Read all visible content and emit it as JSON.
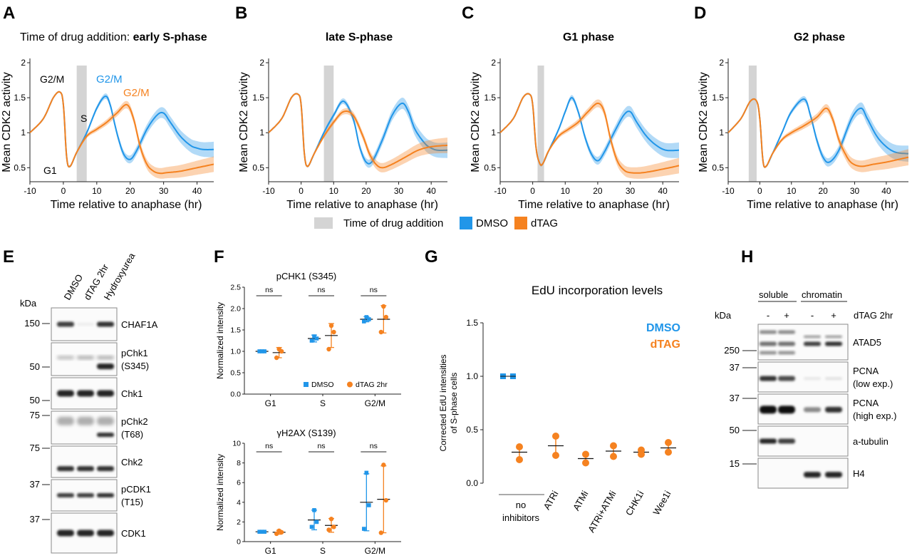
{
  "panel_letters": [
    "A",
    "B",
    "C",
    "D",
    "E",
    "F",
    "G",
    "H"
  ],
  "colors": {
    "dmso": "#2196e9",
    "dtag": "#f58220",
    "gray": "#d4d4d4",
    "axis": "#222222"
  },
  "panelA": {
    "title_prefix": "Time of drug addition:",
    "title_bold": "early S-phase",
    "annotations": {
      "g2m_left": "G2/M",
      "s": "S",
      "g1": "G1",
      "g2m_dmso": "G2/M",
      "g2m_dtag": "G2/M"
    }
  },
  "panelB": {
    "title": "late S-phase"
  },
  "panelC": {
    "title": "G1 phase"
  },
  "panelD": {
    "title": "G2 phase"
  },
  "cdk_axes": {
    "xlabel": "Time relative to anaphase (hr)",
    "ylabel": "Mean CDK2 activity"
  },
  "legend": {
    "drug": "Time of drug addition",
    "dmso": "DMSO",
    "dtag": "dTAG"
  },
  "chart_data": [
    {
      "panel": "A",
      "type": "line",
      "title": "Time of drug addition: early S-phase",
      "xlabel": "Time relative to anaphase (hr)",
      "ylabel": "Mean CDK2 activity",
      "xlim": [
        -10,
        45
      ],
      "ylim": [
        0.3,
        2
      ],
      "xticks": [
        -10,
        0,
        10,
        20,
        30,
        40
      ],
      "yticks": [
        0.5,
        1,
        1.5,
        2
      ],
      "drug_window": [
        4,
        7
      ],
      "series": [
        {
          "name": "DMSO",
          "x": [
            -10,
            -6,
            -3,
            -1,
            0,
            1,
            2,
            4,
            7,
            10,
            12.5,
            14,
            16,
            18,
            20,
            22,
            25,
            28,
            30,
            32,
            35,
            38,
            40,
            42,
            45
          ],
          "y": [
            1.0,
            1.2,
            1.5,
            1.58,
            1.4,
            0.65,
            0.52,
            0.72,
            1.0,
            1.35,
            1.52,
            1.4,
            1.0,
            0.7,
            0.62,
            0.75,
            1.05,
            1.25,
            1.28,
            1.15,
            0.95,
            0.82,
            0.78,
            0.76,
            0.76
          ]
        },
        {
          "name": "dTAG",
          "x": [
            -10,
            -6,
            -3,
            -1,
            0,
            1,
            2,
            4,
            7,
            10,
            13,
            16,
            19,
            21,
            23,
            25,
            27,
            29,
            31,
            35,
            40,
            45
          ],
          "y": [
            1.0,
            1.2,
            1.5,
            1.58,
            1.4,
            0.65,
            0.52,
            0.72,
            0.95,
            1.05,
            1.15,
            1.28,
            1.4,
            1.2,
            0.8,
            0.55,
            0.45,
            0.42,
            0.43,
            0.45,
            0.5,
            0.55
          ]
        }
      ]
    },
    {
      "panel": "B",
      "type": "line",
      "title": "late S-phase",
      "xlabel": "Time relative to anaphase (hr)",
      "ylabel": "Mean CDK2 activity",
      "xlim": [
        -10,
        45
      ],
      "ylim": [
        0.3,
        2
      ],
      "xticks": [
        -10,
        0,
        10,
        20,
        30,
        40
      ],
      "yticks": [
        0.5,
        1,
        1.5,
        2
      ],
      "drug_window": [
        7,
        10
      ],
      "series": [
        {
          "name": "DMSO",
          "x": [
            -10,
            -6,
            -3,
            -1,
            0,
            1,
            2,
            4,
            7,
            10,
            13,
            16,
            18,
            20,
            22,
            25,
            28,
            31,
            33,
            35,
            38,
            40,
            42,
            45
          ],
          "y": [
            1.0,
            1.2,
            1.5,
            1.55,
            1.4,
            0.7,
            0.52,
            0.7,
            1.0,
            1.25,
            1.45,
            1.2,
            0.8,
            0.58,
            0.6,
            0.9,
            1.25,
            1.42,
            1.3,
            1.05,
            0.85,
            0.78,
            0.75,
            0.75
          ]
        },
        {
          "name": "dTAG",
          "x": [
            -10,
            -6,
            -3,
            -1,
            0,
            1,
            2,
            4,
            7,
            10,
            13,
            16,
            19,
            21,
            23,
            25,
            28,
            32,
            36,
            40,
            45
          ],
          "y": [
            1.0,
            1.2,
            1.5,
            1.55,
            1.4,
            0.7,
            0.52,
            0.7,
            0.95,
            1.15,
            1.3,
            1.25,
            0.95,
            0.7,
            0.55,
            0.5,
            0.55,
            0.65,
            0.75,
            0.8,
            0.82
          ]
        }
      ]
    },
    {
      "panel": "C",
      "type": "line",
      "title": "G1 phase",
      "xlabel": "Time relative to anaphase (hr)",
      "ylabel": "Mean CDK2 activity",
      "xlim": [
        -10,
        45
      ],
      "ylim": [
        0.3,
        2
      ],
      "xticks": [
        -10,
        0,
        10,
        20,
        30,
        40
      ],
      "yticks": [
        0.5,
        1,
        1.5,
        2
      ],
      "drug_window": [
        1.5,
        3.5
      ],
      "series": [
        {
          "name": "DMSO",
          "x": [
            -10,
            -6,
            -3,
            -1,
            0,
            1,
            2,
            3,
            5,
            8,
            10,
            12,
            14,
            16,
            18,
            20,
            22,
            25,
            28,
            30,
            32,
            35,
            38,
            41,
            45
          ],
          "y": [
            1.0,
            1.2,
            1.5,
            1.55,
            1.4,
            0.8,
            0.58,
            0.55,
            0.75,
            1.05,
            1.3,
            1.5,
            1.3,
            0.95,
            0.7,
            0.6,
            0.72,
            1.0,
            1.25,
            1.3,
            1.15,
            0.95,
            0.82,
            0.75,
            0.75
          ]
        },
        {
          "name": "dTAG",
          "x": [
            -10,
            -6,
            -3,
            -1,
            0,
            1,
            2,
            3,
            5,
            8,
            11,
            14,
            17,
            20,
            22,
            24,
            26,
            28,
            30,
            34,
            40,
            45
          ],
          "y": [
            1.0,
            1.2,
            1.5,
            1.55,
            1.4,
            0.8,
            0.58,
            0.55,
            0.75,
            0.95,
            1.05,
            1.15,
            1.3,
            1.42,
            1.3,
            0.9,
            0.6,
            0.47,
            0.43,
            0.43,
            0.48,
            0.53
          ]
        }
      ]
    },
    {
      "panel": "D",
      "type": "line",
      "title": "G2 phase",
      "xlabel": "Time relative to anaphase (hr)",
      "ylabel": "Mean CDK2 activity",
      "xlim": [
        -10,
        47
      ],
      "ylim": [
        0.3,
        2
      ],
      "xticks": [
        -10,
        0,
        10,
        20,
        30,
        40
      ],
      "yticks": [
        0.5,
        1,
        1.5,
        2
      ],
      "drug_window": [
        -3.5,
        -1
      ],
      "series": [
        {
          "name": "DMSO",
          "x": [
            -10,
            -6,
            -3,
            -1,
            0,
            1,
            2,
            4,
            7,
            10,
            14,
            16,
            18,
            20,
            22,
            25,
            29,
            32,
            34,
            37,
            40,
            43,
            47
          ],
          "y": [
            1.0,
            1.2,
            1.45,
            1.45,
            1.2,
            0.6,
            0.52,
            0.7,
            1.0,
            1.3,
            1.48,
            1.25,
            0.9,
            0.65,
            0.58,
            0.75,
            1.2,
            1.35,
            1.2,
            0.95,
            0.8,
            0.72,
            0.7
          ]
        },
        {
          "name": "dTAG",
          "x": [
            -10,
            -6,
            -3,
            -1,
            0,
            1,
            2,
            4,
            7,
            10,
            14,
            18,
            21,
            23,
            25,
            27,
            29,
            32,
            36,
            40,
            44,
            47
          ],
          "y": [
            1.0,
            1.2,
            1.45,
            1.45,
            1.2,
            0.6,
            0.52,
            0.7,
            0.9,
            1.0,
            1.1,
            1.22,
            1.35,
            1.2,
            0.9,
            0.7,
            0.57,
            0.52,
            0.55,
            0.58,
            0.62,
            0.65
          ]
        }
      ]
    },
    {
      "panel": "F-top",
      "type": "scatter",
      "title": "pCHK1 (S345)",
      "ylabel": "Normalized intensity",
      "ylim": [
        0,
        2.5
      ],
      "yticks": [
        "0.0",
        "0.5",
        "1.0",
        "1.5",
        "2.0",
        "2.5"
      ],
      "categories": [
        "G1",
        "S",
        "G2/M"
      ],
      "significance": [
        "ns",
        "ns",
        "ns"
      ],
      "series": [
        {
          "name": "DMSO",
          "points": [
            [
              1,
              1,
              1
            ],
            [
              1.25,
              1.35,
              1.3
            ],
            [
              1.7,
              1.8,
              1.75
            ]
          ],
          "mean": [
            1.0,
            1.3,
            1.75
          ],
          "err": [
            0.02,
            0.08,
            0.06
          ]
        },
        {
          "name": "dTAG 2hr",
          "points": [
            [
              0.85,
              1.05,
              1.0
            ],
            [
              1.05,
              1.6,
              1.45
            ],
            [
              1.45,
              2.05,
              1.8
            ]
          ],
          "mean": [
            0.97,
            1.37,
            1.75
          ],
          "err": [
            0.12,
            0.28,
            0.32
          ]
        }
      ]
    },
    {
      "panel": "F-bottom",
      "type": "scatter",
      "title": "γH2AX (S139)",
      "ylabel": "Normalized intensity",
      "ylim": [
        0,
        10
      ],
      "yticks": [
        "0",
        "2",
        "4",
        "6",
        "8",
        "10"
      ],
      "categories": [
        "G1",
        "S",
        "G2/M"
      ],
      "significance": [
        "ns",
        "ns",
        "ns"
      ],
      "series": [
        {
          "name": "DMSO",
          "points": [
            [
              1,
              1,
              1
            ],
            [
              1.5,
              3.2,
              2.0
            ],
            [
              1.3,
              7.0,
              3.7
            ]
          ],
          "mean": [
            1.0,
            2.2,
            4.0
          ],
          "err": [
            0.05,
            1.0,
            2.9
          ]
        },
        {
          "name": "dTAG 2hr",
          "points": [
            [
              0.8,
              1.1,
              0.95
            ],
            [
              1.2,
              2.3,
              1.5
            ],
            [
              0.9,
              7.8,
              4.2
            ]
          ],
          "mean": [
            0.95,
            1.65,
            4.3
          ],
          "err": [
            0.2,
            0.7,
            3.4
          ]
        }
      ]
    },
    {
      "panel": "G",
      "type": "scatter",
      "title": "EdU incorporation levels",
      "ylabel": "Corrected EdU intensities of S-phase cells",
      "ylim": [
        0,
        1.5
      ],
      "yticks": [
        "0.0",
        "0.5",
        "1.0",
        "1.5"
      ],
      "categories": [
        "no inhibitors",
        "ATRi",
        "ATMi",
        "ATRi+ATMi",
        "CHK1i",
        "Wee1i"
      ],
      "series": [
        {
          "name": "DMSO",
          "points": [
            [
              1.0,
              1.0
            ]
          ],
          "mean": [
            1.0
          ]
        },
        {
          "name": "dTAG",
          "points": [
            [
              0.34,
              0.22
            ],
            [
              0.44,
              0.26
            ],
            [
              0.27,
              0.19
            ],
            [
              0.35,
              0.25
            ],
            [
              0.31,
              0.27
            ],
            [
              0.38,
              0.29
            ]
          ],
          "mean": [
            0.29,
            0.35,
            0.23,
            0.3,
            0.29,
            0.33
          ]
        }
      ]
    }
  ],
  "panelF": {
    "top_title": "pCHK1 (S345)",
    "bottom_title": "γH2AX (S139)",
    "ylabel": "Normalized intensity",
    "categories": [
      "G1",
      "S",
      "G2/M"
    ],
    "ns": "ns",
    "legend_dmso": "DMSO",
    "legend_dtag": "dTAG 2hr"
  },
  "panelG": {
    "title": "EdU incorporation levels",
    "ylabel_line1": "Corrected EdU intensities",
    "ylabel_line2": "of S-phase cells",
    "legend_dmso": "DMSO",
    "legend_dtag": "dTAG",
    "xcat_first_line1": "no",
    "xcat_first_line2": "inhibitors",
    "xcats": [
      "ATRi",
      "ATMi",
      "ATRi+ATMi",
      "CHK1i",
      "Wee1i"
    ],
    "yticks": [
      "0.0",
      "0.5",
      "1.0",
      "1.5"
    ]
  },
  "panelE": {
    "kda": "kDa",
    "lanes": [
      "DMSO",
      "dTAG 2hr",
      "Hydroxyurea"
    ],
    "rows": [
      {
        "label1": "CHAF1A",
        "label2": "",
        "marker": "150"
      },
      {
        "label1": "pChk1",
        "label2": "(S345)",
        "marker": "50"
      },
      {
        "label1": "Chk1",
        "label2": "",
        "marker": "50"
      },
      {
        "label1": "pChk2",
        "label2": "(T68)",
        "marker": "75"
      },
      {
        "label1": "Chk2",
        "label2": "",
        "marker": "75"
      },
      {
        "label1": "pCDK1",
        "label2": "(T15)",
        "marker": "37"
      },
      {
        "label1": "CDK1",
        "label2": "",
        "marker": "37"
      }
    ]
  },
  "panelH": {
    "kda": "kDa",
    "group_soluble": "soluble",
    "group_chromatin": "chromatin",
    "lane_signs": [
      "-",
      "+",
      "-",
      "+"
    ],
    "treatment": "dTAG 2hr",
    "rows": [
      {
        "label1": "ATAD5",
        "label2": "",
        "marker": "250"
      },
      {
        "label1": "PCNA",
        "label2": "(low exp.)",
        "marker": "37"
      },
      {
        "label1": "PCNA",
        "label2": "(high exp.)",
        "marker": "37"
      },
      {
        "label1": "a-tubulin",
        "label2": "",
        "marker": "50"
      },
      {
        "label1": "H4",
        "label2": "",
        "marker": "15"
      }
    ]
  }
}
